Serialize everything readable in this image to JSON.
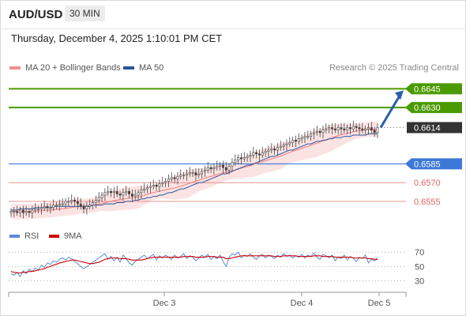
{
  "header": {
    "symbol": "AUD/USD",
    "timeframe": "30 MIN"
  },
  "datetime": "Thursday, December 4, 2025 1:10:01 PM CET",
  "legend": {
    "ma20": "MA 20 + Bollinger Bands",
    "ma50": "MA 50",
    "credit": "Research © 2025 Trading Central",
    "rsi": "RSI",
    "ma9": "9MA"
  },
  "colors": {
    "resistance": "#4a9a00",
    "support_main": "#3c78d8",
    "support": "#e06666",
    "ma20": "#f28e8e",
    "band_fill": "#fbd9d9",
    "ma50": "#2a5599",
    "rsi": "#5b8ad6",
    "rsi_ma": "#cc0000",
    "price_box": "#333333",
    "arrow": "#2b5fa8"
  },
  "chart_data": {
    "type": "line",
    "title": "",
    "price_axis": {
      "ylim": [
        0.6536,
        0.6656
      ]
    },
    "levels": [
      {
        "label": "0.6645",
        "value": 0.6645,
        "kind": "resistance"
      },
      {
        "label": "0.6630",
        "value": 0.663,
        "kind": "resistance"
      },
      {
        "label": "0.6614",
        "value": 0.6614,
        "kind": "current"
      },
      {
        "label": "0.6585",
        "value": 0.6585,
        "kind": "support_main"
      },
      {
        "label": "0.6570",
        "value": 0.657,
        "kind": "support"
      },
      {
        "label": "0.6555",
        "value": 0.6555,
        "kind": "support"
      }
    ],
    "x_ticks": [
      "Dec 3",
      "Dec 4",
      "Dec 5"
    ],
    "price_series": {
      "name": "AUD/USD",
      "close": [
        0.6547,
        0.6547,
        0.6546,
        0.6548,
        0.6546,
        0.6547,
        0.6546,
        0.6548,
        0.6549,
        0.6549,
        0.655,
        0.6551,
        0.655,
        0.655,
        0.6552,
        0.6552,
        0.6553,
        0.6553,
        0.6555,
        0.6555,
        0.6556,
        0.6555,
        0.6553,
        0.6551,
        0.6549,
        0.6551,
        0.6552,
        0.6554,
        0.6556,
        0.6558,
        0.656,
        0.6562,
        0.6563,
        0.6562,
        0.6563,
        0.6561,
        0.656,
        0.6562,
        0.6563,
        0.6561,
        0.6559,
        0.656,
        0.6562,
        0.6564,
        0.6565,
        0.6566,
        0.6567,
        0.6568,
        0.6567,
        0.6569,
        0.657,
        0.6571,
        0.6573,
        0.6574,
        0.6573,
        0.6575,
        0.6576,
        0.6576,
        0.6577,
        0.6578,
        0.6578,
        0.6576,
        0.6577,
        0.6579,
        0.658,
        0.6582,
        0.6581,
        0.6582,
        0.6583,
        0.6584,
        0.6582,
        0.658,
        0.6583,
        0.6586,
        0.6588,
        0.659,
        0.6589,
        0.659,
        0.6591,
        0.6592,
        0.6594,
        0.6593,
        0.6592,
        0.6594,
        0.6595,
        0.6596,
        0.6597,
        0.6596,
        0.6598,
        0.6599,
        0.66,
        0.6601,
        0.6602,
        0.6604,
        0.6603,
        0.6605,
        0.6606,
        0.6607,
        0.6607,
        0.6609,
        0.661,
        0.6611,
        0.661,
        0.6612,
        0.6613,
        0.6614,
        0.6613,
        0.6612,
        0.6614,
        0.6613,
        0.6612,
        0.6614,
        0.6613,
        0.6615,
        0.6614,
        0.6613,
        0.6612,
        0.6613,
        0.6614,
        0.6612,
        0.661,
        0.6614
      ]
    },
    "ma50_series": {
      "name": "MA 50",
      "values": [
        0.6548,
        0.6548,
        0.6548,
        0.6549,
        0.6549,
        0.6549,
        0.6549,
        0.6549,
        0.655,
        0.655,
        0.655,
        0.655,
        0.655,
        0.655,
        0.6551,
        0.6551,
        0.6551,
        0.6551,
        0.6551,
        0.6551,
        0.6551,
        0.6551,
        0.6551,
        0.6551,
        0.6551,
        0.6551,
        0.6551,
        0.6552,
        0.6552,
        0.6552,
        0.6552,
        0.6553,
        0.6553,
        0.6553,
        0.6553,
        0.6554,
        0.6554,
        0.6554,
        0.6555,
        0.6555,
        0.6555,
        0.6556,
        0.6556,
        0.6557,
        0.6557,
        0.6558,
        0.6558,
        0.6559,
        0.6559,
        0.656,
        0.656,
        0.6561,
        0.6562,
        0.6562,
        0.6563,
        0.6564,
        0.6565,
        0.6565,
        0.6566,
        0.6567,
        0.6568,
        0.6569,
        0.657,
        0.657,
        0.6571,
        0.6572,
        0.6573,
        0.6574,
        0.6575,
        0.6576,
        0.6577,
        0.6577,
        0.6578,
        0.6579,
        0.658,
        0.6581,
        0.6582,
        0.6583,
        0.6584,
        0.6584,
        0.6585,
        0.6586,
        0.6587,
        0.6588,
        0.6589,
        0.659,
        0.6591,
        0.6591,
        0.6592,
        0.6593,
        0.6594,
        0.6595,
        0.6596,
        0.6596,
        0.6597,
        0.6598,
        0.6599,
        0.66,
        0.6601,
        0.6601,
        0.6602,
        0.6603,
        0.6603,
        0.6604,
        0.6604,
        0.6605,
        0.6605,
        0.6606,
        0.6606,
        0.6606,
        0.6607,
        0.6607,
        0.6607,
        0.6608,
        0.6608,
        0.6608,
        0.6608,
        0.6608,
        0.6609,
        0.6609,
        0.6609,
        0.6609
      ]
    },
    "rsi_panel": {
      "ylim": [
        25,
        78
      ],
      "ticks": [
        70,
        50,
        30
      ],
      "rsi": [
        40,
        38,
        42,
        36,
        44,
        40,
        46,
        43,
        48,
        45,
        52,
        49,
        55,
        53,
        58,
        56,
        60,
        62,
        59,
        63,
        61,
        57,
        54,
        50,
        47,
        50,
        53,
        56,
        59,
        62,
        65,
        68,
        60,
        64,
        58,
        63,
        56,
        66,
        61,
        55,
        52,
        57,
        60,
        63,
        66,
        61,
        64,
        67,
        59,
        65,
        62,
        66,
        63,
        60,
        66,
        62,
        64,
        68,
        61,
        65,
        63,
        58,
        62,
        66,
        63,
        67,
        60,
        64,
        61,
        66,
        57,
        50,
        63,
        68,
        66,
        70,
        62,
        66,
        64,
        68,
        63,
        60,
        65,
        67,
        62,
        66,
        64,
        61,
        66,
        63,
        68,
        64,
        66,
        62,
        65,
        63,
        67,
        62,
        66,
        64,
        69,
        63,
        60,
        67,
        65,
        62,
        66,
        58,
        63,
        61,
        66,
        59,
        64,
        62,
        57,
        63,
        61,
        66,
        55,
        60,
        58,
        62
      ],
      "rsi_ma": [
        43,
        42,
        41,
        41,
        42,
        42,
        43,
        43,
        44,
        45,
        46,
        47,
        49,
        50,
        52,
        53,
        55,
        56,
        57,
        58,
        59,
        59,
        58,
        57,
        56,
        55,
        54,
        54,
        55,
        56,
        58,
        60,
        61,
        62,
        62,
        62,
        61,
        61,
        61,
        60,
        59,
        59,
        59,
        59,
        60,
        61,
        62,
        63,
        63,
        63,
        63,
        63,
        63,
        63,
        63,
        63,
        63,
        64,
        64,
        64,
        64,
        63,
        63,
        63,
        63,
        64,
        64,
        64,
        63,
        63,
        63,
        61,
        61,
        62,
        63,
        64,
        65,
        65,
        65,
        65,
        65,
        65,
        65,
        65,
        65,
        65,
        65,
        64,
        64,
        64,
        65,
        65,
        65,
        65,
        65,
        64,
        64,
        64,
        64,
        64,
        65,
        65,
        65,
        64,
        64,
        64,
        64,
        63,
        63,
        63,
        63,
        63,
        63,
        62,
        62,
        62,
        62,
        62,
        61,
        61,
        60,
        60
      ]
    }
  }
}
